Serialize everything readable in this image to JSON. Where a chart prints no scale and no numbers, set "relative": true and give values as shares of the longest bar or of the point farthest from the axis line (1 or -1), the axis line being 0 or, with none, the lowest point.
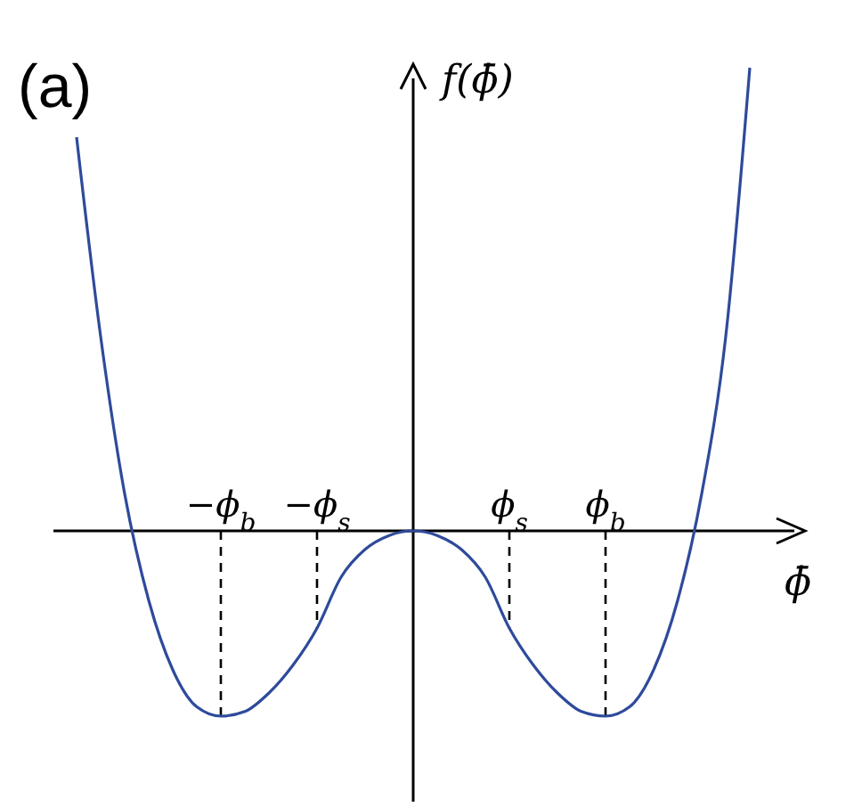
{
  "chart_data": {
    "type": "line",
    "title": "(a)",
    "xlabel": "ϕ̄",
    "ylabel": "f(ϕ̄)",
    "relative": true,
    "tick_labels": "x",
    "categories": [
      null,
      null,
      null,
      null,
      null,
      null,
      "−ϕ$_{b}$",
      null,
      null,
      null,
      "−ϕ$_{s}$",
      null,
      null,
      null,
      null,
      null,
      null,
      null,
      "ϕ$_{s}$",
      null,
      null,
      null,
      "ϕ$_{b}$",
      null,
      null,
      null,
      null,
      null,
      null
    ],
    "series": [
      {
        "color": "#2e4a9b",
        "values": [
          0.85,
          0.42,
          0.08,
          -0.15,
          -0.3,
          -0.38,
          -0.4,
          -0.39,
          -0.35,
          -0.29,
          -0.21,
          -0.1,
          -0.04,
          -0.01,
          0,
          -0.01,
          -0.04,
          -0.1,
          -0.21,
          -0.29,
          -0.35,
          -0.39,
          -0.4,
          -0.38,
          -0.3,
          -0.15,
          0.08,
          0.42,
          1
        ]
      }
    ],
    "ref_lines": [
      {
        "axis": "x",
        "value": "−ϕ$_{b}$",
        "line_style": "dashed"
      },
      {
        "axis": "x",
        "value": "−ϕ$_{s}$",
        "line_style": "dashed"
      },
      {
        "axis": "x",
        "value": "ϕ$_{s}$",
        "line_style": "dashed"
      },
      {
        "axis": "x",
        "value": "ϕ$_{b}$",
        "line_style": "dashed"
      }
    ]
  }
}
